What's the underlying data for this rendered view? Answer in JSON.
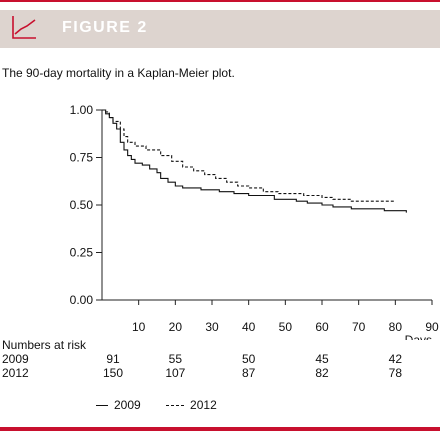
{
  "figure_label": "FIGURE 2",
  "caption": "The 90-day mortality in a Kaplan-Meier plot.",
  "accent_color": "#c8102e",
  "header_color": "#ddd4cf",
  "icon": "line-chart-icon",
  "chart_data": {
    "type": "line",
    "title": "",
    "xlabel": "Days",
    "ylabel": "",
    "xlim": [
      0,
      90
    ],
    "ylim": [
      0,
      1
    ],
    "x_ticks": [
      10,
      20,
      30,
      40,
      50,
      60,
      70,
      80,
      90
    ],
    "y_ticks": [
      "1.00",
      "0.75",
      "0.50",
      "0.25",
      "0.00"
    ],
    "grid": false,
    "legend_position": "bottom",
    "series": [
      {
        "name": "2009",
        "style": "solid",
        "steps": [
          [
            0,
            1.0
          ],
          [
            1,
            0.98
          ],
          [
            2,
            0.96
          ],
          [
            3,
            0.93
          ],
          [
            4,
            0.9
          ],
          [
            5,
            0.83
          ],
          [
            6,
            0.79
          ],
          [
            7,
            0.76
          ],
          [
            8,
            0.74
          ],
          [
            9,
            0.72
          ],
          [
            11,
            0.71
          ],
          [
            13,
            0.69
          ],
          [
            15,
            0.67
          ],
          [
            16,
            0.64
          ],
          [
            18,
            0.62
          ],
          [
            20,
            0.6
          ],
          [
            22,
            0.59
          ],
          [
            27,
            0.58
          ],
          [
            32,
            0.57
          ],
          [
            36,
            0.56
          ],
          [
            40,
            0.55
          ],
          [
            47,
            0.53
          ],
          [
            53,
            0.52
          ],
          [
            56,
            0.51
          ],
          [
            60,
            0.5
          ],
          [
            63,
            0.49
          ],
          [
            68,
            0.48
          ],
          [
            77,
            0.47
          ],
          [
            83,
            0.46
          ]
        ]
      },
      {
        "name": "2012",
        "style": "dashed",
        "steps": [
          [
            0,
            1.0
          ],
          [
            1,
            0.99
          ],
          [
            2,
            0.96
          ],
          [
            3,
            0.94
          ],
          [
            5,
            0.9
          ],
          [
            6,
            0.86
          ],
          [
            7,
            0.83
          ],
          [
            9,
            0.81
          ],
          [
            12,
            0.79
          ],
          [
            16,
            0.76
          ],
          [
            19,
            0.73
          ],
          [
            22,
            0.7
          ],
          [
            25,
            0.68
          ],
          [
            28,
            0.66
          ],
          [
            31,
            0.64
          ],
          [
            34,
            0.62
          ],
          [
            37,
            0.6
          ],
          [
            40,
            0.59
          ],
          [
            44,
            0.57
          ],
          [
            48,
            0.56
          ],
          [
            55,
            0.55
          ],
          [
            60,
            0.54
          ],
          [
            63,
            0.53
          ],
          [
            68,
            0.52
          ],
          [
            80,
            0.52
          ]
        ]
      }
    ]
  },
  "risk_table": {
    "label": "Numbers at risk",
    "rows": [
      {
        "year": "2009",
        "values": [
          {
            "day": 0,
            "n": "91"
          },
          {
            "day": 20,
            "n": "55"
          },
          {
            "day": 40,
            "n": "50"
          },
          {
            "day": 60,
            "n": "45"
          },
          {
            "day": 80,
            "n": "42"
          }
        ]
      },
      {
        "year": "2012",
        "values": [
          {
            "day": 0,
            "n": "150"
          },
          {
            "day": 20,
            "n": "107"
          },
          {
            "day": 40,
            "n": "87"
          },
          {
            "day": 60,
            "n": "82"
          },
          {
            "day": 80,
            "n": "78"
          }
        ]
      }
    ]
  }
}
